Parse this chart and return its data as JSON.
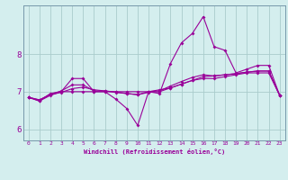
{
  "xlabel": "Windchill (Refroidissement éolien,°C)",
  "x_values": [
    0,
    1,
    2,
    3,
    4,
    5,
    6,
    7,
    8,
    9,
    10,
    11,
    12,
    13,
    14,
    15,
    16,
    17,
    18,
    19,
    20,
    21,
    22,
    23
  ],
  "line1": [
    6.85,
    6.75,
    6.95,
    7.0,
    7.35,
    7.35,
    7.0,
    7.0,
    6.8,
    6.55,
    6.1,
    7.0,
    6.95,
    7.75,
    8.3,
    8.55,
    9.0,
    8.2,
    8.1,
    7.5,
    7.6,
    7.7,
    7.7,
    6.9
  ],
  "line2": [
    6.85,
    6.75,
    6.9,
    7.0,
    7.0,
    7.0,
    7.0,
    7.0,
    7.0,
    7.0,
    7.0,
    7.0,
    7.05,
    7.1,
    7.2,
    7.3,
    7.35,
    7.35,
    7.4,
    7.45,
    7.5,
    7.5,
    7.5,
    6.9
  ],
  "line3": [
    6.85,
    6.78,
    6.92,
    6.98,
    7.08,
    7.12,
    7.05,
    7.02,
    6.98,
    6.95,
    6.92,
    6.98,
    7.0,
    7.1,
    7.2,
    7.3,
    7.4,
    7.42,
    7.45,
    7.48,
    7.52,
    7.55,
    7.55,
    6.9
  ],
  "line4": [
    6.85,
    6.78,
    6.93,
    7.02,
    7.18,
    7.18,
    7.02,
    7.02,
    6.99,
    6.95,
    6.92,
    7.0,
    7.02,
    7.15,
    7.27,
    7.38,
    7.45,
    7.42,
    7.45,
    7.48,
    7.52,
    7.55,
    7.55,
    6.9
  ],
  "bg_color": "#d4eeee",
  "grid_color": "#aacccc",
  "line_color": "#990099",
  "ylim": [
    5.7,
    9.3
  ],
  "yticks": [
    6,
    7,
    8
  ],
  "xlim": [
    -0.5,
    23.5
  ]
}
